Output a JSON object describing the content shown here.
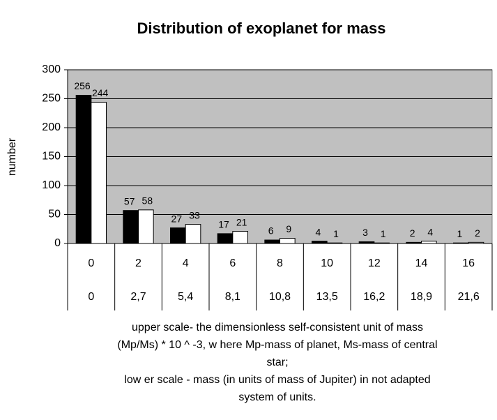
{
  "chart_data": {
    "type": "bar",
    "title": "Distribution of exoplanet for mass",
    "ylabel": "number",
    "categories": [
      "0",
      "2",
      "4",
      "6",
      "8",
      "10",
      "12",
      "14",
      "16"
    ],
    "categories_lower": [
      "0",
      "2,7",
      "5,4",
      "8,1",
      "10,8",
      "13,5",
      "16,2",
      "18,9",
      "21,6"
    ],
    "series": [
      {
        "color": "#000000",
        "values": [
          256,
          57,
          27,
          17,
          6,
          4,
          3,
          2,
          1
        ]
      },
      {
        "color": "#ffffff",
        "values": [
          244,
          58,
          33,
          21,
          9,
          1,
          1,
          4,
          2
        ]
      }
    ],
    "ylim": [
      0,
      300
    ],
    "yticks": [
      0,
      50,
      100,
      150,
      200,
      250,
      300
    ],
    "plot_background": "#c0c0c0",
    "xlabel_lines": [
      "upper scale- the dimensionless self-consistent unit of mass",
      "(Mp/Ms) * 10 ^ -3, w here Mp-mass of planet, Ms-mass of central",
      "star;",
      "low er scale - mass (in units of mass of Jupiter) in not adapted",
      "system of units."
    ]
  }
}
